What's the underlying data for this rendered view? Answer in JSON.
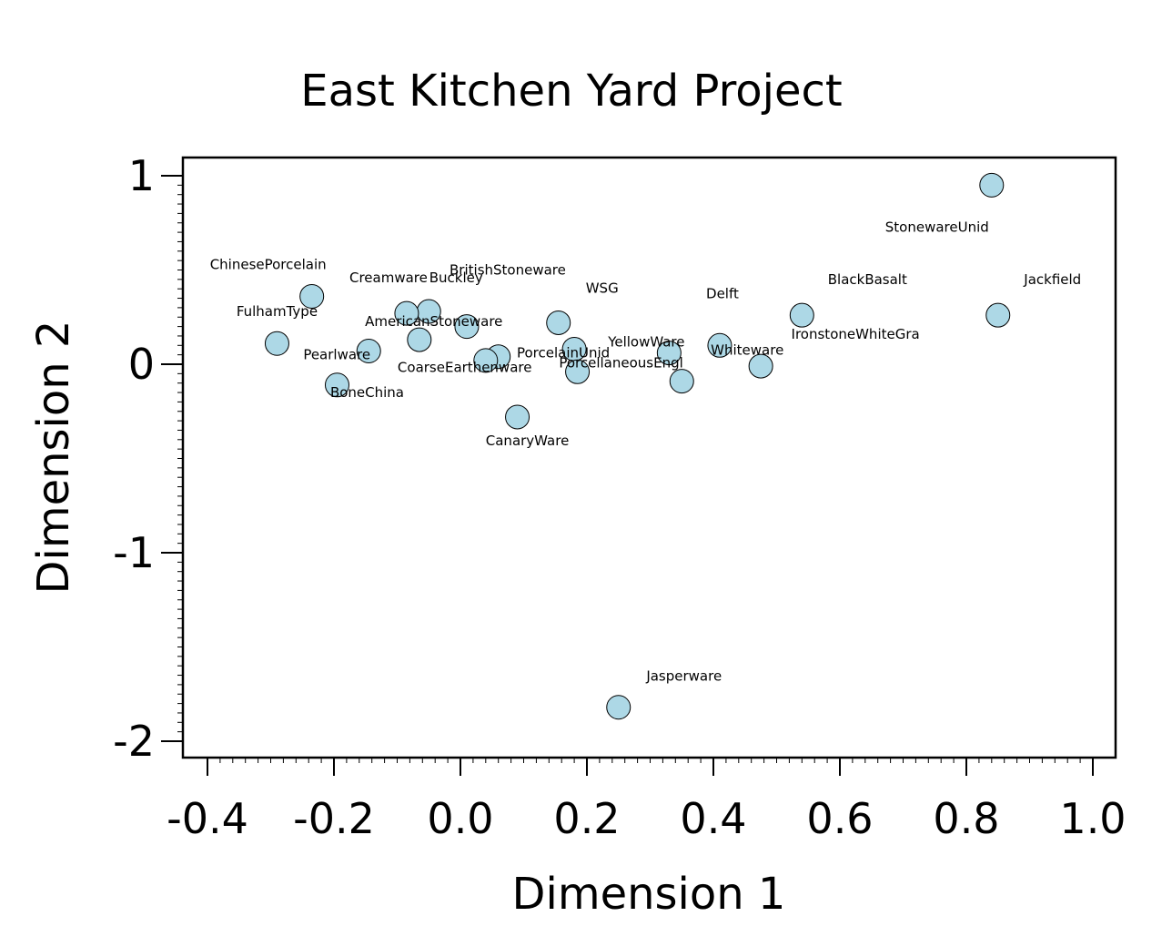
{
  "chart_data": {
    "type": "scatter",
    "title": "East Kitchen Yard Project",
    "xlabel": "Dimension 1",
    "ylabel": "Dimension 2",
    "xlim": [
      -0.42,
      1.06
    ],
    "ylim": [
      -2.1,
      1.1
    ],
    "x_ticks": [
      -0.4,
      -0.2,
      0.0,
      0.2,
      0.4,
      0.6,
      0.8,
      1.0
    ],
    "x_tick_labels": [
      "-0.4",
      "-0.2",
      "0.0",
      "0.2",
      "0.4",
      "0.6",
      "0.8",
      "1.0"
    ],
    "y_ticks": [
      1,
      0,
      -1,
      -2
    ],
    "y_tick_labels": [
      "1",
      "0",
      "-1",
      "-2"
    ],
    "grid": false,
    "marker_color": "#add8e6",
    "points": [
      {
        "label": "StonewareUnid",
        "x": 0.84,
        "y": 0.95
      },
      {
        "label": "Jackfield",
        "x": 0.85,
        "y": 0.26
      },
      {
        "label": "BlackBasalt",
        "x": 0.54,
        "y": 0.26
      },
      {
        "label": "IronstoneWhiteGra",
        "x": 0.475,
        "y": -0.01
      },
      {
        "label": "Delft",
        "x": 0.41,
        "y": 0.1
      },
      {
        "label": "Whiteware",
        "x": 0.35,
        "y": -0.09
      },
      {
        "label": "YellowWare",
        "x": 0.33,
        "y": 0.06
      },
      {
        "label": "WSG",
        "x": 0.155,
        "y": 0.22
      },
      {
        "label": "PorcelainUnid",
        "x": 0.18,
        "y": 0.08
      },
      {
        "label": "PorcellaneousEngl",
        "x": 0.185,
        "y": -0.04
      },
      {
        "label": "CanaryWare",
        "x": 0.09,
        "y": -0.28
      },
      {
        "label": "Jasperware",
        "x": 0.25,
        "y": -1.82
      },
      {
        "label": "BritishStoneware",
        "x": 0.01,
        "y": 0.2
      },
      {
        "label": "CoarseEarthenware",
        "x": 0.06,
        "y": 0.04
      },
      {
        "label": "AmericanStoneware",
        "x": 0.04,
        "y": 0.02
      },
      {
        "label": "Buckley",
        "x": -0.05,
        "y": 0.28
      },
      {
        "label": "Creamware",
        "x": -0.085,
        "y": 0.27
      },
      {
        "label": "ChinesePorcelain",
        "x": -0.235,
        "y": 0.36
      },
      {
        "label": "FulhamType",
        "x": -0.29,
        "y": 0.11
      },
      {
        "label": "Pearlware",
        "x": -0.145,
        "y": 0.07
      },
      {
        "label": "BoneChina",
        "x": -0.195,
        "y": -0.11
      },
      {
        "label": "",
        "x": -0.065,
        "y": 0.13
      }
    ]
  }
}
